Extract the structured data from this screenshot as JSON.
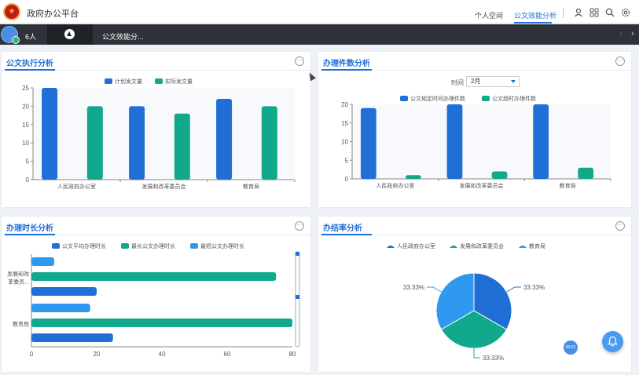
{
  "header": {
    "app_title": "政府办公平台",
    "nav": [
      {
        "label": "个人空间",
        "active": false
      },
      {
        "label": "公文效能分析",
        "active": true
      }
    ],
    "tool_icons": [
      "user-icon",
      "grid-icon",
      "search-icon",
      "settings-icon"
    ]
  },
  "tabbar": {
    "people_count": "6人",
    "active_tab": "公文效能分...",
    "home_icon": "nav-home-icon"
  },
  "colors": {
    "primary": "#1f6fd6",
    "teal": "#12a88c",
    "light_blue": "#2f99ef"
  },
  "panels": {
    "p1": {
      "title": "公文执行分析",
      "chart_data": {
        "type": "bar",
        "categories": [
          "人民政府办公室",
          "发展和改革委员会",
          "教育局"
        ],
        "series": [
          {
            "name": "计划发文量",
            "values": [
              25,
              20,
              22
            ],
            "color": "#1f6fd6"
          },
          {
            "name": "实际发文量",
            "values": [
              20,
              18,
              20
            ],
            "color": "#12a88c"
          }
        ],
        "ylim": [
          0,
          25
        ],
        "yticks": [
          0,
          5,
          10,
          15,
          20,
          25
        ]
      }
    },
    "p2": {
      "title": "办理件数分析",
      "time_label": "时间",
      "month_value": "2月",
      "chart_data": {
        "type": "bar",
        "categories": [
          "人民政府办公室",
          "发展和改革委员会",
          "教育局"
        ],
        "series": [
          {
            "name": "公文规定时间办理件数",
            "values": [
              19,
              20,
              20
            ],
            "color": "#1f6fd6"
          },
          {
            "name": "公文超时办理件数",
            "values": [
              1,
              2,
              3
            ],
            "color": "#12a88c"
          }
        ],
        "ylim": [
          0,
          20
        ],
        "yticks": [
          0,
          5,
          10,
          15,
          20
        ]
      }
    },
    "p3": {
      "title": "办理时长分析",
      "chart_data": {
        "type": "bar",
        "orientation": "horizontal",
        "categories": [
          "发展和改革委员...",
          "教育局"
        ],
        "series": [
          {
            "name": "公文平均办理时长",
            "values": [
              20,
              25
            ],
            "color": "#1f6fd6"
          },
          {
            "name": "最长公文办理时长",
            "values": [
              75,
              80
            ],
            "color": "#12a88c"
          },
          {
            "name": "最短公文办理时长",
            "values": [
              7,
              18
            ],
            "color": "#2f99ef"
          }
        ],
        "xlim": [
          0,
          80
        ],
        "xticks": [
          0,
          20,
          40,
          60,
          80
        ]
      }
    },
    "p4": {
      "title": "办结率分析",
      "chart_data": {
        "type": "pie",
        "series": [
          {
            "name": "人民政府办公室",
            "value": 33.33,
            "label": "33.33%",
            "color": "#1f6fd6"
          },
          {
            "name": "发展和改革委员会",
            "value": 33.33,
            "label": "33.33%",
            "color": "#12a88c"
          },
          {
            "name": "教育局",
            "value": 33.33,
            "label": "33.33%",
            "color": "#2f99ef"
          }
        ]
      }
    }
  },
  "badge_text": "00:52"
}
